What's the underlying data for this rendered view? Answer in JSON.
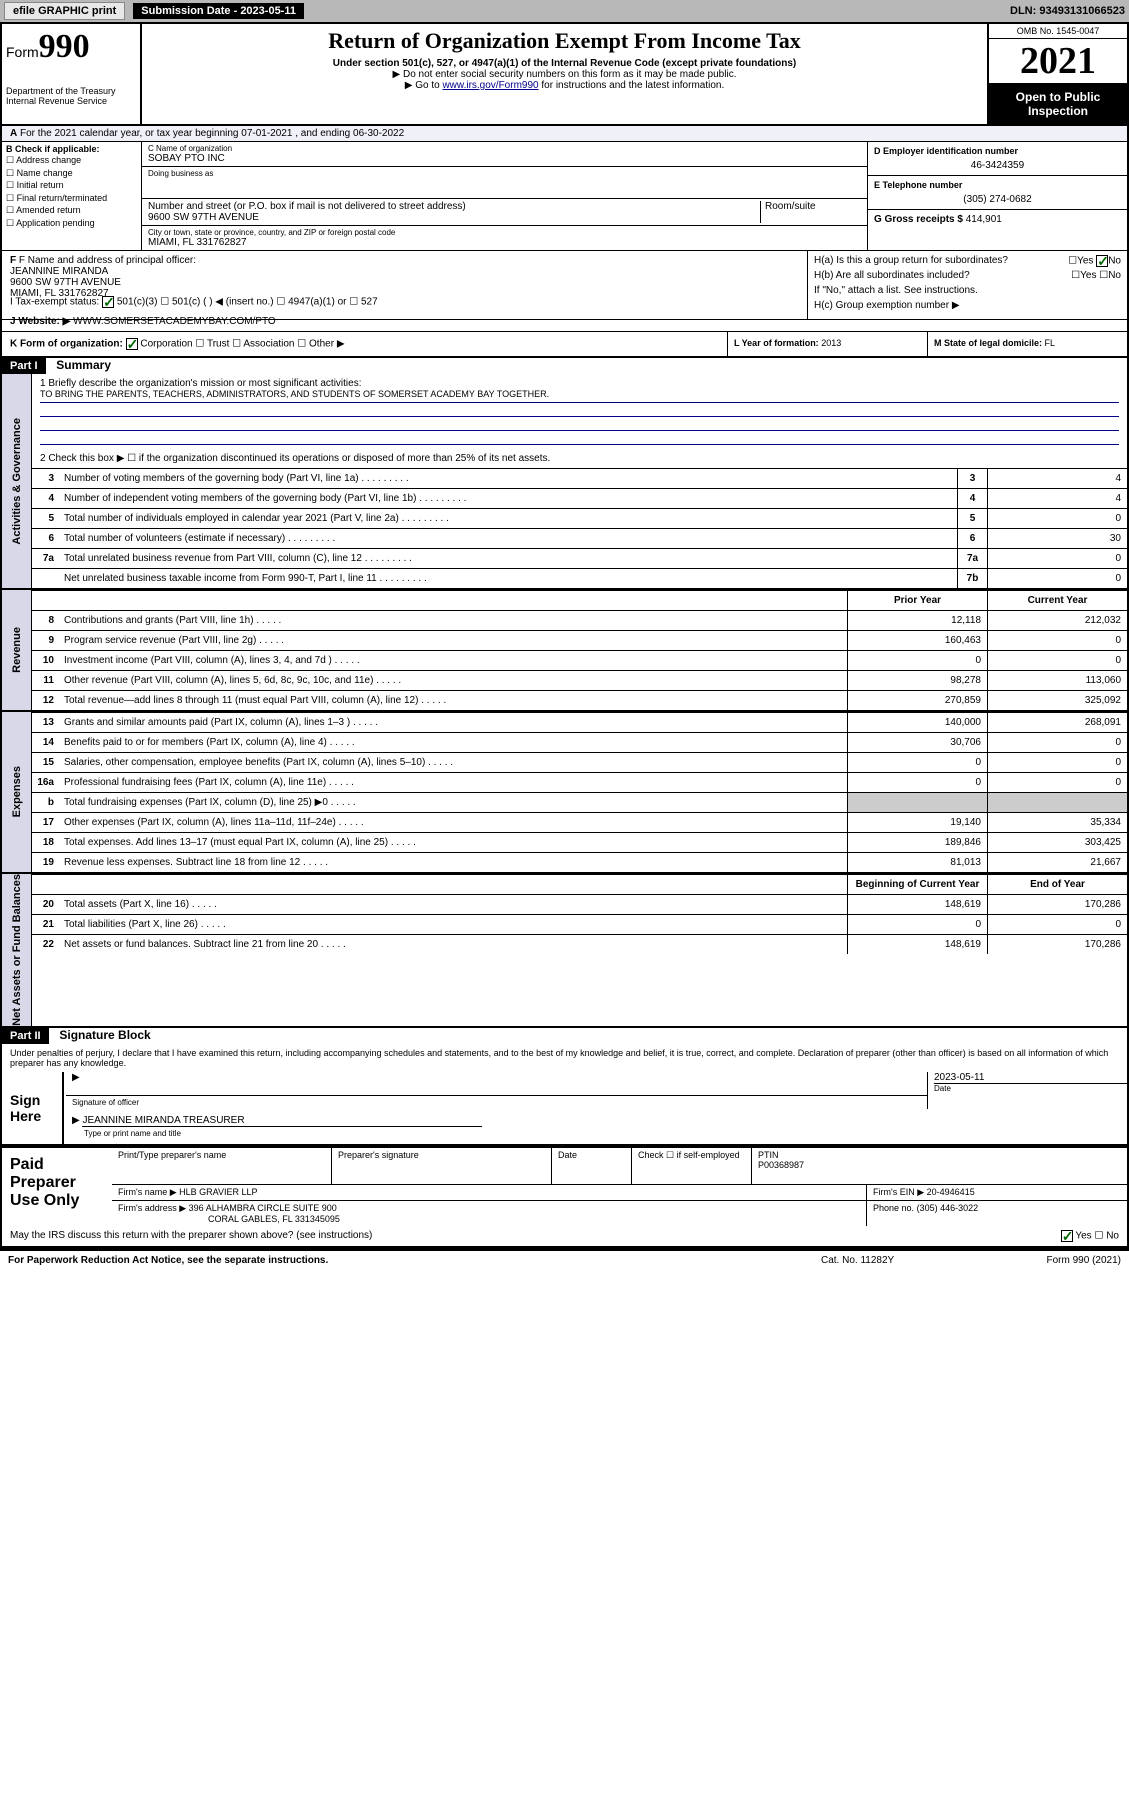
{
  "topbar": {
    "efile": "efile GRAPHIC print",
    "sub_label": "Submission Date - 2023-05-11",
    "dln": "DLN: 93493131066523"
  },
  "header": {
    "form_prefix": "Form",
    "form_num": "990",
    "dept": "Department of the Treasury",
    "irs": "Internal Revenue Service",
    "title": "Return of Organization Exempt From Income Tax",
    "sub1": "Under section 501(c), 527, or 4947(a)(1) of the Internal Revenue Code (except private foundations)",
    "sub2": "▶ Do not enter social security numbers on this form as it may be made public.",
    "sub3_pre": "▶ Go to ",
    "sub3_link": "www.irs.gov/Form990",
    "sub3_post": " for instructions and the latest information.",
    "omb": "OMB No. 1545-0047",
    "year": "2021",
    "inspection": "Open to Public Inspection"
  },
  "period": {
    "line": "For the 2021 calendar year, or tax year beginning 07-01-2021   , and ending 06-30-2022"
  },
  "colB": {
    "hdr": "B Check if applicable:",
    "items": [
      "Address change",
      "Name change",
      "Initial return",
      "Final return/terminated",
      "Amended return",
      "Application pending"
    ]
  },
  "org": {
    "name_lbl": "C Name of organization",
    "name": "SOBAY PTO INC",
    "dba_lbl": "Doing business as",
    "addr_lbl": "Number and street (or P.O. box if mail is not delivered to street address)",
    "room_lbl": "Room/suite",
    "addr": "9600 SW 97TH AVENUE",
    "city_lbl": "City or town, state or province, country, and ZIP or foreign postal code",
    "city": "MIAMI, FL  331762827"
  },
  "right": {
    "ein_lbl": "D Employer identification number",
    "ein": "46-3424359",
    "tel_lbl": "E Telephone number",
    "tel": "(305) 274-0682",
    "gross_lbl": "G Gross receipts $",
    "gross": "414,901"
  },
  "officer": {
    "lbl": "F Name and address of principal officer:",
    "name": "JEANNINE MIRANDA",
    "addr1": "9600 SW 97TH AVENUE",
    "addr2": "MIAMI, FL  331762827"
  },
  "h": {
    "a": "H(a)  Is this a group return for subordinates?",
    "b": "H(b)  Are all subordinates included?",
    "b_note": "If \"No,\" attach a list. See instructions.",
    "c": "H(c)  Group exemption number ▶",
    "yes": "Yes",
    "no": "No"
  },
  "tax_status": {
    "lbl": "I   Tax-exempt status:",
    "o1": "501(c)(3)",
    "o2": "501(c) (  ) ◀ (insert no.)",
    "o3": "4947(a)(1) or",
    "o4": "527"
  },
  "website": {
    "lbl": "J   Website: ▶",
    "val": "WWW.SOMERSETACADEMYBAY.COM/PTO"
  },
  "k": {
    "lbl": "K Form of organization:",
    "o1": "Corporation",
    "o2": "Trust",
    "o3": "Association",
    "o4": "Other ▶",
    "l_lbl": "L Year of formation:",
    "l_val": "2013",
    "m_lbl": "M State of legal domicile:",
    "m_val": "FL"
  },
  "part1": {
    "hdr": "Part I",
    "title": "Summary",
    "mission_lbl": "1   Briefly describe the organization's mission or most significant activities:",
    "mission": "TO BRING THE PARENTS, TEACHERS, ADMINISTRATORS, AND STUDENTS OF SOMERSET ACADEMY BAY TOGETHER.",
    "line2": "2   Check this box ▶ ☐  if the organization discontinued its operations or disposed of more than 25% of its net assets."
  },
  "gov_rows": [
    {
      "n": "3",
      "d": "Number of voting members of the governing body (Part VI, line 1a)",
      "b": "3",
      "v": "4"
    },
    {
      "n": "4",
      "d": "Number of independent voting members of the governing body (Part VI, line 1b)",
      "b": "4",
      "v": "4"
    },
    {
      "n": "5",
      "d": "Total number of individuals employed in calendar year 2021 (Part V, line 2a)",
      "b": "5",
      "v": "0"
    },
    {
      "n": "6",
      "d": "Total number of volunteers (estimate if necessary)",
      "b": "6",
      "v": "30"
    },
    {
      "n": "7a",
      "d": "Total unrelated business revenue from Part VIII, column (C), line 12",
      "b": "7a",
      "v": "0"
    },
    {
      "n": "",
      "d": "Net unrelated business taxable income from Form 990-T, Part I, line 11",
      "b": "7b",
      "v": "0"
    }
  ],
  "col_hdrs": {
    "prior": "Prior Year",
    "current": "Current Year",
    "beg": "Beginning of Current Year",
    "end": "End of Year"
  },
  "vtabs": {
    "gov": "Activities & Governance",
    "rev": "Revenue",
    "exp": "Expenses",
    "net": "Net Assets or Fund Balances"
  },
  "rev_rows": [
    {
      "n": "8",
      "d": "Contributions and grants (Part VIII, line 1h)",
      "p": "12,118",
      "c": "212,032"
    },
    {
      "n": "9",
      "d": "Program service revenue (Part VIII, line 2g)",
      "p": "160,463",
      "c": "0"
    },
    {
      "n": "10",
      "d": "Investment income (Part VIII, column (A), lines 3, 4, and 7d )",
      "p": "0",
      "c": "0"
    },
    {
      "n": "11",
      "d": "Other revenue (Part VIII, column (A), lines 5, 6d, 8c, 9c, 10c, and 11e)",
      "p": "98,278",
      "c": "113,060"
    },
    {
      "n": "12",
      "d": "Total revenue—add lines 8 through 11 (must equal Part VIII, column (A), line 12)",
      "p": "270,859",
      "c": "325,092"
    }
  ],
  "exp_rows": [
    {
      "n": "13",
      "d": "Grants and similar amounts paid (Part IX, column (A), lines 1–3 )",
      "p": "140,000",
      "c": "268,091"
    },
    {
      "n": "14",
      "d": "Benefits paid to or for members (Part IX, column (A), line 4)",
      "p": "30,706",
      "c": "0"
    },
    {
      "n": "15",
      "d": "Salaries, other compensation, employee benefits (Part IX, column (A), lines 5–10)",
      "p": "0",
      "c": "0"
    },
    {
      "n": "16a",
      "d": "Professional fundraising fees (Part IX, column (A), line 11e)",
      "p": "0",
      "c": "0"
    },
    {
      "n": "b",
      "d": "Total fundraising expenses (Part IX, column (D), line 25) ▶0",
      "p": "",
      "c": "",
      "shaded": true
    },
    {
      "n": "17",
      "d": "Other expenses (Part IX, column (A), lines 11a–11d, 11f–24e)",
      "p": "19,140",
      "c": "35,334"
    },
    {
      "n": "18",
      "d": "Total expenses. Add lines 13–17 (must equal Part IX, column (A), line 25)",
      "p": "189,846",
      "c": "303,425"
    },
    {
      "n": "19",
      "d": "Revenue less expenses. Subtract line 18 from line 12",
      "p": "81,013",
      "c": "21,667"
    }
  ],
  "net_rows": [
    {
      "n": "20",
      "d": "Total assets (Part X, line 16)",
      "p": "148,619",
      "c": "170,286"
    },
    {
      "n": "21",
      "d": "Total liabilities (Part X, line 26)",
      "p": "0",
      "c": "0"
    },
    {
      "n": "22",
      "d": "Net assets or fund balances. Subtract line 21 from line 20",
      "p": "148,619",
      "c": "170,286"
    }
  ],
  "part2": {
    "hdr": "Part II",
    "title": "Signature Block",
    "decl": "Under penalties of perjury, I declare that I have examined this return, including accompanying schedules and statements, and to the best of my knowledge and belief, it is true, correct, and complete. Declaration of preparer (other than officer) is based on all information of which preparer has any knowledge."
  },
  "sign": {
    "here": "Sign Here",
    "sig_lbl": "Signature of officer",
    "date_lbl": "Date",
    "date": "2023-05-11",
    "name": "JEANNINE MIRANDA  TREASURER",
    "name_lbl": "Type or print name and title"
  },
  "paid": {
    "hdr": "Paid Preparer Use Only",
    "print_lbl": "Print/Type preparer's name",
    "sig_lbl": "Preparer's signature",
    "date_lbl": "Date",
    "check_lbl": "Check ☐ if self-employed",
    "ptin_lbl": "PTIN",
    "ptin": "P00368987",
    "firm_lbl": "Firm's name    ▶",
    "firm": "HLB GRAVIER LLP",
    "ein_lbl": "Firm's EIN ▶",
    "ein": "20-4946415",
    "addr_lbl": "Firm's address ▶",
    "addr1": "396 ALHAMBRA CIRCLE SUITE 900",
    "addr2": "CORAL GABLES, FL  331345095",
    "phone_lbl": "Phone no.",
    "phone": "(305) 446-3022"
  },
  "discuss": {
    "q": "May the IRS discuss this return with the preparer shown above? (see instructions)",
    "yes": "Yes",
    "no": "No"
  },
  "footer": {
    "left": "For Paperwork Reduction Act Notice, see the separate instructions.",
    "mid": "Cat. No. 11282Y",
    "right": "Form 990 (2021)"
  }
}
